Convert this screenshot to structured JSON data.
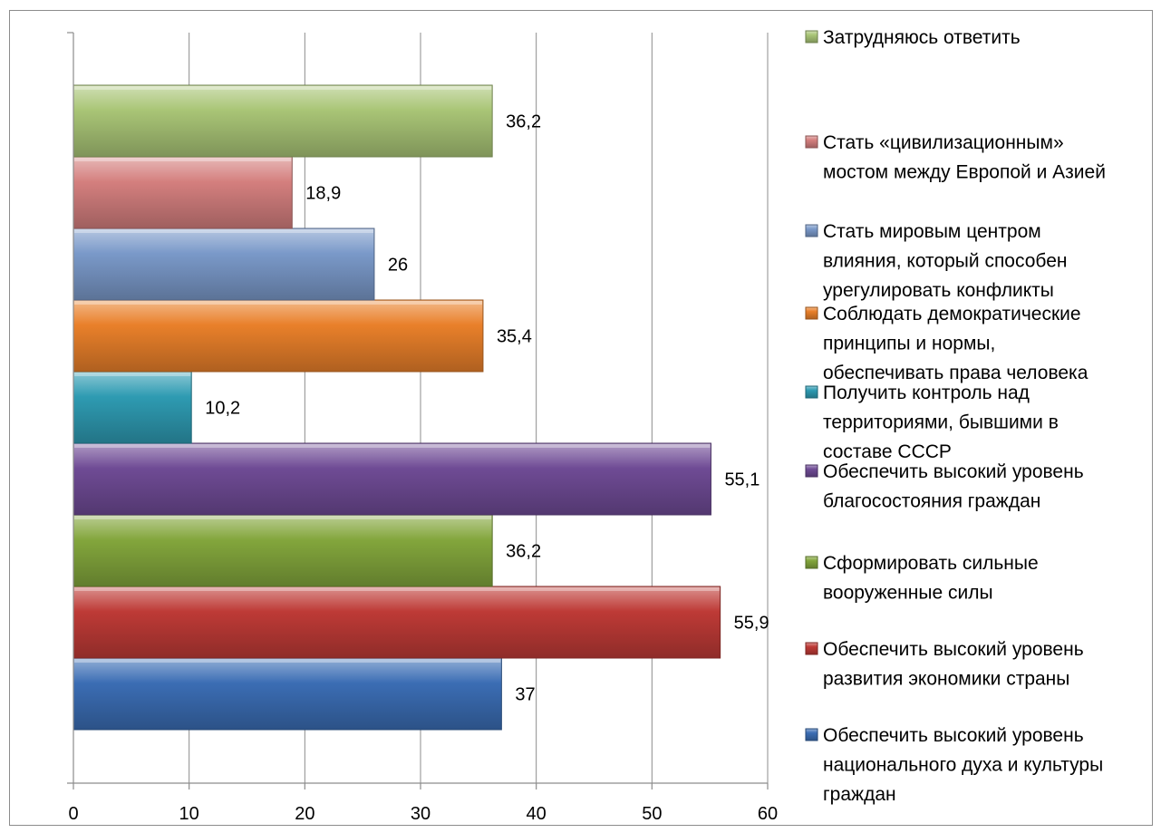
{
  "chart_data": {
    "type": "bar",
    "orientation": "horizontal",
    "xlim": [
      0,
      60
    ],
    "x_ticks": [
      "0",
      "10",
      "20",
      "30",
      "40",
      "50",
      "60"
    ],
    "grid": true,
    "legend_position": "right",
    "categories": [
      "Обеспечить высокий уровень национального духа и культуры граждан",
      "Обеспечить высокий уровень развития экономики страны",
      "Сформировать сильные вооруженные силы",
      "Обеспечить высокий уровень благосостояния граждан",
      "Получить контроль над территориями, бывшими в составе СССР",
      "Соблюдать демократические принципы и нормы, обеспечивать права человека",
      "Стать мировым центром влияния, который способен урегулировать конфликты",
      "Стать «цивилизационным» мостом между Европой и Азией",
      "Затрудняюсь ответить"
    ],
    "values": [
      37,
      55.9,
      36.2,
      55.1,
      10.2,
      35.4,
      26,
      18.9,
      36.2
    ],
    "value_labels": [
      "37",
      "55,9",
      "36,2",
      "55,1",
      "10,2",
      "35,4",
      "26",
      "18,9",
      "36,2"
    ],
    "colors": [
      "#3b6db4",
      "#be3a36",
      "#83a63c",
      "#6f4b95",
      "#2e9bb2",
      "#e9802a",
      "#7a99c9",
      "#d47f7e",
      "#a9c576"
    ],
    "legend": [
      {
        "lines": [
          "Затрудняюсь ответить"
        ],
        "color": "#a9c576"
      },
      {
        "lines": [
          "Стать «цивилизационным»",
          "мостом между Европой и Азией"
        ],
        "color": "#d47f7e"
      },
      {
        "lines": [
          "Стать мировым центром",
          "влияния, который способен",
          "урегулировать конфликты"
        ],
        "color": "#7a99c9"
      },
      {
        "lines": [
          "Соблюдать демократические",
          "принципы и нормы,",
          "обеспечивать права человека"
        ],
        "color": "#e9802a"
      },
      {
        "lines": [
          "Получить контроль над",
          "территориями, бывшими в",
          "составе СССР"
        ],
        "color": "#2e9bb2"
      },
      {
        "lines": [
          "Обеспечить высокий уровень",
          "благосостояния граждан"
        ],
        "color": "#6f4b95"
      },
      {
        "lines": [
          "Сформировать сильные",
          "вооруженные силы"
        ],
        "color": "#83a63c"
      },
      {
        "lines": [
          "Обеспечить высокий уровень",
          "развития экономики страны"
        ],
        "color": "#be3a36"
      },
      {
        "lines": [
          "Обеспечить высокий уровень",
          "национального духа и культуры",
          "граждан"
        ],
        "color": "#3b6db4"
      }
    ]
  }
}
